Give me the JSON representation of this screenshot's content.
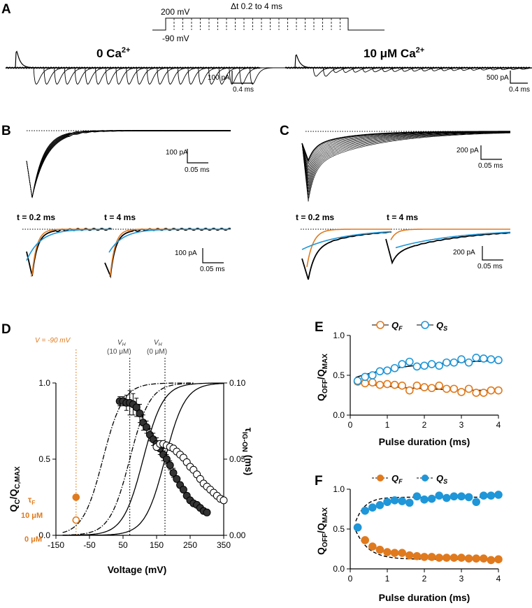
{
  "panels": {
    "A": {
      "letter": "A",
      "protocol": {
        "v_high": "200 mV",
        "v_low": "-90 mV",
        "dt_label": "Δt 0.2 to 4 ms"
      },
      "left_title": "0 Ca",
      "right_title": "10 μM Ca",
      "ca_sup": "2+",
      "left_scale": {
        "y": "100 pA",
        "x": "0.4 ms"
      },
      "right_scale": {
        "y": "500 pA",
        "x": "0.4 ms"
      }
    },
    "B": {
      "letter": "B",
      "scale_top": {
        "y": "100 pA",
        "x": "0.05 ms"
      },
      "t1": "t = 0.2 ms",
      "t2": "t = 4 ms",
      "scale_bottom": {
        "y": "100 pA",
        "x": "0.05 ms"
      }
    },
    "C": {
      "letter": "C",
      "scale_top": {
        "y": "200 pA",
        "x": "0.05 ms"
      },
      "t1": "t = 0.2 ms",
      "t2": "t = 4 ms",
      "scale_bottom": {
        "y": "200 pA",
        "x": "0.05 ms"
      }
    },
    "D": {
      "letter": "D",
      "v_label": "V = -90 mV",
      "vh10": "V",
      "vh10_sub": "H",
      "vh10_conc": "(10 μM)",
      "vh0": "V",
      "vh0_sub": "H",
      "vh0_conc": "(0 μM)",
      "tau_f": "τ",
      "tau_f_sub": "F",
      "conc10": "10 μM",
      "conc0": "0 μM",
      "ylabel_left": "Q",
      "ylabel_left_sub1": "C",
      "ylabel_left_mid": "/Q",
      "ylabel_left_sub2": "C,MAX",
      "ylabel_right": "τ",
      "ylabel_right_sub": "IG-ON",
      "ylabel_right_unit": " (ms)",
      "xlabel": "Voltage (mV)"
    },
    "E": {
      "letter": "E",
      "legend_f": "Q",
      "legend_f_sub": "F",
      "legend_s": "Q",
      "legend_s_sub": "S",
      "ylabel": "Q",
      "ylabel_sub1": "OFF",
      "ylabel_mid": "/Q",
      "ylabel_sub2": "MAX",
      "xlabel": "Pulse duration (ms)"
    },
    "F": {
      "letter": "F",
      "legend_f": "Q",
      "legend_f_sub": "F",
      "legend_s": "Q",
      "legend_s_sub": "S",
      "ylabel": "Q",
      "ylabel_sub1": "OFF",
      "ylabel_mid": "/Q",
      "ylabel_sub2": "MAX",
      "xlabel": "Pulse duration (ms)"
    }
  },
  "colors": {
    "orange": "#e07a1e",
    "blue": "#1f96d8",
    "black": "#000000",
    "open_gray": "#ffffff"
  },
  "chart_data": [
    {
      "id": "D",
      "type": "scatter",
      "xlim": [
        -150,
        350
      ],
      "xticks": [
        -150,
        -50,
        50,
        150,
        250,
        350
      ],
      "ylim": [
        0,
        1.0
      ],
      "yticks": [
        0.0,
        0.5,
        1.0
      ],
      "y2lim": [
        0,
        0.1
      ],
      "y2ticks": [
        0.0,
        0.05,
        0.1
      ],
      "vlines": [
        -90,
        70,
        175
      ],
      "series": [
        {
          "marker": "filled",
          "axis": "right",
          "x": [
            40,
            50,
            60,
            70,
            80,
            90,
            100,
            110,
            120,
            130,
            140,
            150,
            160,
            170,
            180,
            190,
            200,
            210,
            220,
            230,
            240,
            250,
            260,
            270,
            280,
            290,
            300
          ],
          "y": [
            0.088,
            0.088,
            0.087,
            0.087,
            0.086,
            0.084,
            0.08,
            0.074,
            0.071,
            0.066,
            0.063,
            0.06,
            0.057,
            0.053,
            0.05,
            0.046,
            0.041,
            0.037,
            0.033,
            0.03,
            0.026,
            0.023,
            0.021,
            0.02,
            0.018,
            0.016,
            0.015
          ],
          "err": [
            0.003,
            0.003,
            0.005,
            0.008,
            0.007,
            0.006,
            0.006,
            0.005,
            0.004,
            0.004,
            0.004,
            0.004,
            0.004,
            0.004,
            0.003,
            0.003,
            0.003,
            0.002,
            0.002,
            0.002,
            0.002,
            0.002,
            0.001,
            0.001,
            0.001,
            0.001,
            0.001
          ]
        },
        {
          "marker": "open",
          "axis": "right",
          "x": [
            150,
            160,
            170,
            180,
            190,
            200,
            210,
            220,
            230,
            240,
            250,
            260,
            270,
            280,
            290,
            300,
            310,
            320,
            330,
            340,
            350
          ],
          "y": [
            0.058,
            0.06,
            0.06,
            0.059,
            0.058,
            0.057,
            0.055,
            0.053,
            0.051,
            0.048,
            0.045,
            0.043,
            0.04,
            0.037,
            0.034,
            0.032,
            0.03,
            0.028,
            0.026,
            0.024,
            0.023
          ],
          "err": [
            0.002,
            0.002,
            0.002,
            0.002,
            0.002,
            0.002,
            0.002,
            0.002,
            0.002,
            0.002,
            0.002,
            0.002,
            0.002,
            0.002,
            0.002,
            0.002,
            0.002,
            0.002,
            0.002,
            0.002,
            0.002
          ]
        },
        {
          "marker": "tau_points",
          "axis": "right",
          "x": [
            -90,
            -90
          ],
          "y": [
            0.025,
            0.01
          ],
          "styles": [
            "filled",
            "open"
          ]
        }
      ],
      "curves": [
        {
          "style": "dashdot",
          "vh": -10,
          "k": 30,
          "xmin": -130,
          "xmax": 260
        },
        {
          "style": "dashdot",
          "vh": 70,
          "k": 30,
          "xmin": -130,
          "xmax": 260
        },
        {
          "style": "solid",
          "vh": 110,
          "k": 30,
          "xmin": -130,
          "xmax": 350
        },
        {
          "style": "solid",
          "vh": 175,
          "k": 30,
          "xmin": -130,
          "xmax": 350
        }
      ]
    },
    {
      "id": "E",
      "type": "scatter",
      "xlim": [
        0,
        4
      ],
      "xticks": [
        0,
        1,
        2,
        3,
        4
      ],
      "ylim": [
        0,
        1.0
      ],
      "yticks": [
        0.0,
        0.5,
        1.0
      ],
      "series": [
        {
          "name": "QF",
          "marker": "open",
          "color": "orange",
          "x": [
            0.2,
            0.4,
            0.6,
            0.8,
            1.0,
            1.2,
            1.4,
            1.6,
            1.8,
            2.0,
            2.2,
            2.4,
            2.6,
            2.8,
            3.0,
            3.2,
            3.4,
            3.6,
            3.8,
            4.0
          ],
          "y": [
            0.42,
            0.4,
            0.41,
            0.38,
            0.39,
            0.38,
            0.37,
            0.31,
            0.37,
            0.35,
            0.34,
            0.37,
            0.33,
            0.33,
            0.29,
            0.33,
            0.28,
            0.28,
            0.31,
            0.31
          ]
        },
        {
          "name": "QS",
          "marker": "open",
          "color": "blue",
          "x": [
            0.2,
            0.4,
            0.6,
            0.8,
            1.0,
            1.2,
            1.4,
            1.6,
            1.8,
            2.0,
            2.2,
            2.4,
            2.6,
            2.8,
            3.0,
            3.2,
            3.4,
            3.6,
            3.8,
            4.0
          ],
          "y": [
            0.43,
            0.48,
            0.5,
            0.55,
            0.56,
            0.59,
            0.64,
            0.67,
            0.61,
            0.62,
            0.64,
            0.62,
            0.66,
            0.66,
            0.7,
            0.66,
            0.72,
            0.71,
            0.7,
            0.69
          ]
        }
      ],
      "fits": [
        {
          "color": "black",
          "a": 0.7,
          "b": -0.25,
          "tau": 1.5
        },
        {
          "color": "black",
          "a": 0.3,
          "b": 0.12,
          "tau": 1.5
        }
      ]
    },
    {
      "id": "F",
      "type": "scatter",
      "xlim": [
        0,
        4
      ],
      "xticks": [
        0,
        1,
        2,
        3,
        4
      ],
      "ylim": [
        0,
        1.0
      ],
      "yticks": [
        0.0,
        0.5,
        1.0
      ],
      "series": [
        {
          "name": "QF",
          "marker": "filled",
          "color": "orange",
          "x": [
            0.2,
            0.4,
            0.6,
            0.8,
            1.0,
            1.2,
            1.4,
            1.6,
            1.8,
            2.0,
            2.2,
            2.4,
            2.6,
            2.8,
            3.0,
            3.2,
            3.4,
            3.6,
            3.8,
            4.0
          ],
          "y": [
            0.52,
            0.36,
            0.28,
            0.24,
            0.21,
            0.2,
            0.2,
            0.17,
            0.16,
            0.15,
            0.15,
            0.14,
            0.14,
            0.14,
            0.14,
            0.13,
            0.13,
            0.13,
            0.11,
            0.12
          ]
        },
        {
          "name": "QS",
          "marker": "filled",
          "color": "blue",
          "x": [
            0.2,
            0.4,
            0.6,
            0.8,
            1.0,
            1.2,
            1.4,
            1.6,
            1.8,
            2.0,
            2.2,
            2.4,
            2.6,
            2.8,
            3.0,
            3.2,
            3.4,
            3.6,
            3.8,
            4.0
          ],
          "y": [
            0.52,
            0.73,
            0.77,
            0.8,
            0.84,
            0.86,
            0.85,
            0.83,
            0.91,
            0.87,
            0.88,
            0.92,
            0.89,
            0.91,
            0.91,
            0.9,
            0.84,
            0.92,
            0.92,
            0.93
          ]
        }
      ],
      "fits": [
        {
          "color": "black",
          "a": 0.9,
          "b": -0.55,
          "tau": 0.25
        },
        {
          "color": "black",
          "a": 0.12,
          "b": 0.55,
          "tau": 0.35
        }
      ]
    }
  ]
}
